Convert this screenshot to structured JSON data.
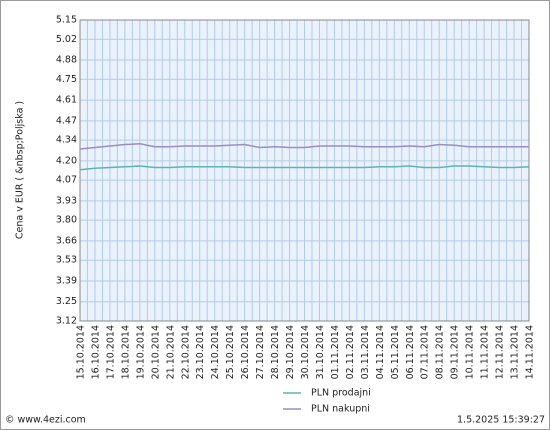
{
  "chart_data": {
    "type": "line",
    "y_label": "Cena v EUR  ( &nbsp;Poljska )",
    "footer_left": "© www.4ezi.com",
    "footer_right": "1.5.2025 15:39:27",
    "categories": [
      "15.10.2014",
      "16.10.2014",
      "17.10.2014",
      "18.10.2014",
      "19.10.2014",
      "20.10.2014",
      "21.10.2014",
      "22.10.2014",
      "23.10.2014",
      "24.10.2014",
      "25.10.2014",
      "26.10.2014",
      "27.10.2014",
      "28.10.2014",
      "29.10.2014",
      "30.10.2014",
      "31.10.2014",
      "01.11.2014",
      "02.11.2014",
      "03.11.2014",
      "04.11.2014",
      "05.11.2014",
      "06.11.2014",
      "07.11.2014",
      "08.11.2014",
      "09.11.2014",
      "10.11.2014",
      "11.11.2014",
      "12.11.2014",
      "13.11.2014",
      "14.11.2014"
    ],
    "series": [
      {
        "name": "PLN prodajni",
        "color": "#5fb3b3",
        "values": [
          4.14,
          4.15,
          4.155,
          4.16,
          4.165,
          4.155,
          4.155,
          4.16,
          4.16,
          4.16,
          4.16,
          4.155,
          4.155,
          4.155,
          4.155,
          4.155,
          4.155,
          4.155,
          4.155,
          4.155,
          4.16,
          4.16,
          4.165,
          4.155,
          4.155,
          4.165,
          4.165,
          4.16,
          4.155,
          4.155,
          4.16
        ]
      },
      {
        "name": "PLN nakupni",
        "color": "#9b8cc4",
        "values": [
          4.28,
          4.29,
          4.3,
          4.31,
          4.315,
          4.295,
          4.295,
          4.3,
          4.3,
          4.3,
          4.305,
          4.31,
          4.29,
          4.295,
          4.29,
          4.29,
          4.3,
          4.3,
          4.3,
          4.295,
          4.295,
          4.295,
          4.3,
          4.295,
          4.31,
          4.305,
          4.295,
          4.295,
          4.295,
          4.295,
          4.295
        ]
      }
    ],
    "ylim": [
      3.12,
      5.15
    ],
    "yticks": [
      3.12,
      3.25,
      3.39,
      3.53,
      3.66,
      {
        "value": 3.8,
        "label": "3.80"
      },
      3.93,
      4.07,
      {
        "value": 4.2,
        "label": "4.20"
      },
      4.34,
      4.47,
      4.61,
      4.75,
      4.88,
      5.02,
      5.15
    ],
    "grid": true,
    "legend": "bottom"
  }
}
